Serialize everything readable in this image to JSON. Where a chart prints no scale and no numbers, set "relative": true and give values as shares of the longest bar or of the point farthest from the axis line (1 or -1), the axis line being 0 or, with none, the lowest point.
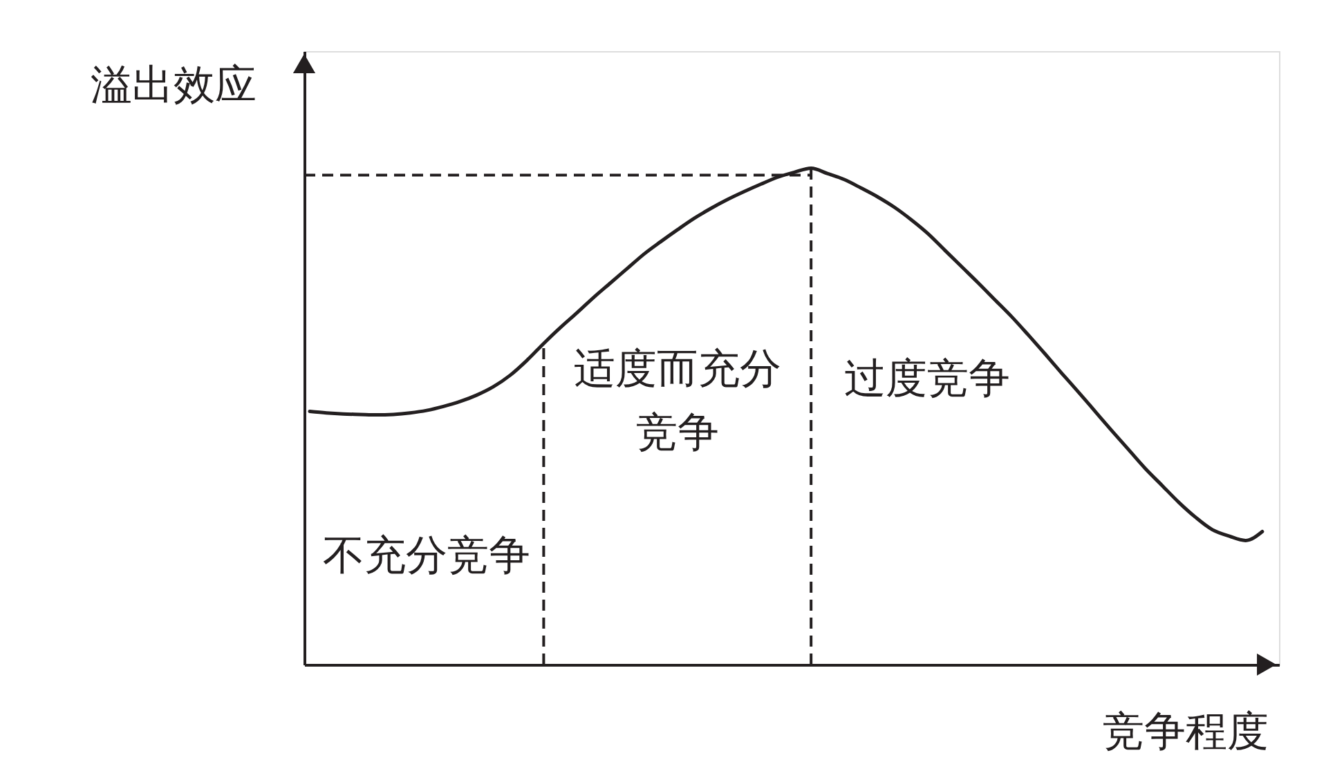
{
  "chart_data": {
    "type": "line",
    "relative": true,
    "xlabel": "竞争程度",
    "ylabel": "溢出效应",
    "line_style": "solid",
    "categories": [
      null,
      null,
      null,
      null,
      null,
      null,
      null,
      null,
      null,
      null,
      null,
      null,
      null,
      null,
      null,
      null,
      null,
      null,
      null,
      null,
      null,
      null,
      null,
      null,
      null,
      null,
      null,
      null,
      null,
      null,
      null,
      null,
      null,
      null,
      null,
      null,
      null,
      null,
      null,
      null,
      null,
      null,
      null,
      null,
      null,
      null,
      null,
      null,
      null,
      null,
      null,
      null,
      null,
      null,
      null,
      null,
      null,
      null
    ],
    "series": [
      {
        "color": "#231f20",
        "values": [
          0.51,
          0.507,
          0.505,
          0.504,
          0.503,
          0.504,
          0.507,
          0.512,
          0.52,
          0.53,
          0.543,
          0.56,
          0.583,
          0.613,
          0.647,
          0.679,
          0.709,
          0.74,
          0.769,
          0.798,
          0.827,
          0.852,
          0.876,
          0.899,
          0.919,
          0.937,
          0.953,
          0.968,
          0.982,
          0.992,
          1.0,
          0.989,
          0.977,
          0.96,
          0.942,
          0.921,
          0.896,
          0.868,
          0.835,
          0.802,
          0.769,
          0.735,
          0.701,
          0.664,
          0.626,
          0.587,
          0.549,
          0.51,
          0.471,
          0.433,
          0.395,
          0.361,
          0.327,
          0.297,
          0.272,
          0.259,
          0.25,
          0.268
        ]
      }
    ],
    "ref_lines": [
      {
        "axis": "y",
        "value": 0.986,
        "color": "#231f20",
        "line_style": "dashed"
      }
    ],
    "annotations": [
      "不充分竞争",
      "适度而充分竞争",
      "过度竞争"
    ]
  }
}
